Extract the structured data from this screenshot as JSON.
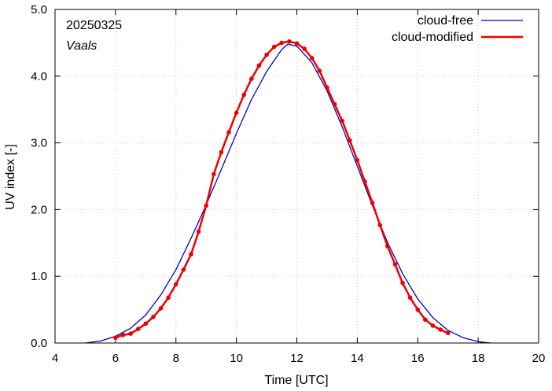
{
  "chart_data": {
    "type": "line",
    "xlabel": "Time  [UTC]",
    "ylabel": "UV index  [-]",
    "xlim": [
      4,
      20
    ],
    "ylim": [
      0,
      5
    ],
    "x_ticks": [
      4,
      6,
      8,
      10,
      12,
      14,
      16,
      18,
      20
    ],
    "x_tick_labels": [
      "4",
      "6",
      "8",
      "10",
      "12",
      "14",
      "16",
      "18",
      "20"
    ],
    "y_ticks": [
      0,
      1,
      2,
      3,
      4,
      5
    ],
    "y_tick_labels": [
      "0.0",
      "1.0",
      "2.0",
      "3.0",
      "4.0",
      "5.0"
    ],
    "annotations": {
      "date": "20250325",
      "location": "Vaals"
    },
    "legend_position": "top-right",
    "colors": {
      "cloud_free": "#0000cc",
      "cloud_modified": "#ee0000"
    },
    "series": [
      {
        "name": "cloud-free",
        "color": "#0000cc",
        "markers": false,
        "x": [
          5.0,
          5.5,
          6.0,
          6.5,
          7.0,
          7.5,
          8.0,
          8.5,
          9.0,
          9.5,
          10.0,
          10.5,
          11.0,
          11.5,
          11.7,
          12.0,
          12.5,
          13.0,
          13.5,
          14.0,
          14.5,
          15.0,
          15.5,
          16.0,
          16.5,
          17.0,
          17.5,
          18.0,
          18.4
        ],
        "y": [
          0.0,
          0.03,
          0.1,
          0.22,
          0.42,
          0.72,
          1.1,
          1.57,
          2.07,
          2.6,
          3.14,
          3.65,
          4.07,
          4.4,
          4.48,
          4.45,
          4.2,
          3.78,
          3.24,
          2.65,
          2.06,
          1.51,
          1.04,
          0.66,
          0.38,
          0.19,
          0.08,
          0.02,
          0.0
        ]
      },
      {
        "name": "cloud-modified",
        "color": "#ee0000",
        "markers": true,
        "x": [
          6.0,
          6.25,
          6.5,
          6.75,
          7.0,
          7.25,
          7.5,
          7.75,
          8.0,
          8.25,
          8.5,
          8.75,
          9.0,
          9.25,
          9.5,
          9.75,
          10.0,
          10.25,
          10.5,
          10.75,
          11.0,
          11.25,
          11.5,
          11.75,
          12.0,
          12.25,
          12.5,
          12.75,
          13.0,
          13.25,
          13.5,
          13.75,
          14.0,
          14.25,
          14.5,
          14.75,
          15.0,
          15.25,
          15.5,
          15.75,
          16.0,
          16.25,
          16.5,
          16.75,
          17.0
        ],
        "y": [
          0.08,
          0.12,
          0.14,
          0.21,
          0.29,
          0.39,
          0.52,
          0.68,
          0.88,
          1.1,
          1.33,
          1.67,
          2.06,
          2.53,
          2.86,
          3.16,
          3.45,
          3.72,
          3.96,
          4.16,
          4.32,
          4.44,
          4.5,
          4.52,
          4.49,
          4.41,
          4.27,
          4.08,
          3.83,
          3.58,
          3.33,
          3.04,
          2.74,
          2.42,
          2.1,
          1.77,
          1.45,
          1.18,
          0.9,
          0.68,
          0.5,
          0.35,
          0.26,
          0.2,
          0.15
        ]
      }
    ]
  }
}
